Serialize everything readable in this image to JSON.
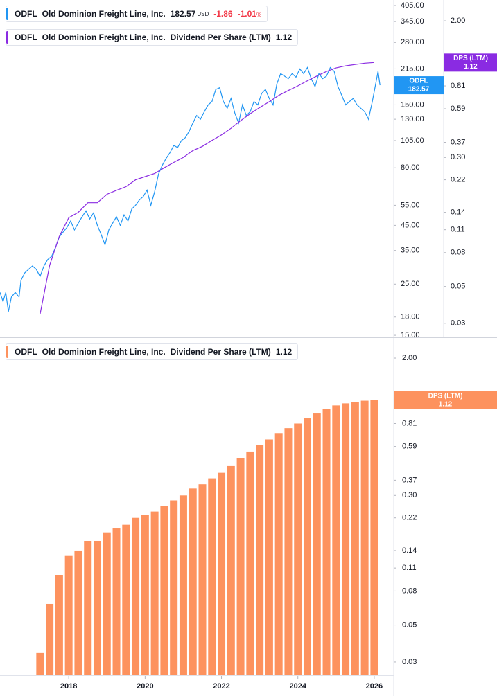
{
  "chart_data": [
    {
      "type": "line",
      "ticker": "ODFL",
      "currency": "USD",
      "change": -1.86,
      "change_percent": -1.01,
      "percent_sign": "%",
      "log_scale": true,
      "xlim": [
        2016.2,
        2026.51
      ],
      "ylim": [
        14.7,
        428
      ],
      "yticks": [
        {
          "value": 405,
          "label": "405.00"
        },
        {
          "value": 345,
          "label": "345.00"
        },
        {
          "value": 280,
          "label": "280.00"
        },
        {
          "value": 215,
          "label": "215.00"
        },
        {
          "value": 150,
          "label": "150.00"
        },
        {
          "value": 130,
          "label": "130.00"
        },
        {
          "value": 105,
          "label": "105.00"
        },
        {
          "value": 80,
          "label": "80.00"
        },
        {
          "value": 55,
          "label": "55.00"
        },
        {
          "value": 45,
          "label": "45.00"
        },
        {
          "value": 35,
          "label": "35.00"
        },
        {
          "value": 25,
          "label": "25.00"
        },
        {
          "value": 18,
          "label": "18.00"
        },
        {
          "value": 15,
          "label": "15.00"
        }
      ],
      "y2lim": [
        0.0247,
        2.67
      ],
      "y2ticks": [
        {
          "value": 2,
          "label": "2.00"
        },
        0.81,
        0.59,
        0.37,
        {
          "value": 0.3,
          "label": "0.30"
        },
        0.22,
        0.14,
        0.11,
        0.08,
        0.05,
        0.03
      ],
      "series": [
        {
          "name": "Old Dominion Freight Line, Inc.",
          "color": "#2196f3",
          "x": [
            2016.2,
            2016.28,
            2016.35,
            2016.42,
            2016.5,
            2016.6,
            2016.7,
            2016.75,
            2016.85,
            2016.95,
            2017.05,
            2017.15,
            2017.25,
            2017.35,
            2017.45,
            2017.55,
            2017.65,
            2017.75,
            2017.85,
            2017.95,
            2018.05,
            2018.15,
            2018.25,
            2018.35,
            2018.45,
            2018.55,
            2018.65,
            2018.75,
            2018.85,
            2018.95,
            2019.05,
            2019.15,
            2019.25,
            2019.35,
            2019.45,
            2019.55,
            2019.65,
            2019.75,
            2019.85,
            2019.95,
            2020.05,
            2020.15,
            2020.25,
            2020.35,
            2020.45,
            2020.55,
            2020.65,
            2020.75,
            2020.85,
            2020.95,
            2021.05,
            2021.15,
            2021.25,
            2021.35,
            2021.45,
            2021.55,
            2021.65,
            2021.75,
            2021.85,
            2021.95,
            2022.05,
            2022.15,
            2022.25,
            2022.35,
            2022.45,
            2022.55,
            2022.65,
            2022.75,
            2022.85,
            2022.95,
            2023.05,
            2023.15,
            2023.25,
            2023.35,
            2023.45,
            2023.55,
            2023.65,
            2023.75,
            2023.85,
            2023.95,
            2024.05,
            2024.15,
            2024.25,
            2024.35,
            2024.45,
            2024.55,
            2024.65,
            2024.75,
            2024.85,
            2024.95,
            2025.05,
            2025.15,
            2025.25,
            2025.35,
            2025.45,
            2025.55,
            2025.65,
            2025.75,
            2025.85,
            2025.95,
            2026.05,
            2026.1,
            2026.15
          ],
          "values": [
            23,
            21,
            23,
            19,
            22,
            23,
            22,
            26,
            28,
            29,
            30,
            29,
            27,
            30,
            32,
            33,
            36,
            40,
            42,
            44,
            47,
            43,
            46,
            49,
            52,
            48,
            51,
            45,
            41,
            37,
            43,
            46,
            49,
            45,
            50,
            47,
            53,
            55,
            58,
            60,
            64,
            55,
            63,
            75,
            82,
            88,
            93,
            100,
            98,
            105,
            108,
            115,
            125,
            135,
            130,
            140,
            150,
            155,
            175,
            178,
            155,
            145,
            160,
            138,
            125,
            150,
            135,
            140,
            155,
            150,
            168,
            175,
            160,
            150,
            185,
            205,
            200,
            195,
            205,
            198,
            215,
            205,
            218,
            195,
            180,
            205,
            195,
            200,
            218,
            210,
            180,
            165,
            150,
            155,
            160,
            150,
            145,
            140,
            130,
            155,
            190,
            210,
            182.57
          ]
        },
        {
          "name": "Dividend Per Share (LTM)",
          "color": "#8a2be2",
          "axis": "y2",
          "badge_label": "DPS (LTM)",
          "x": [
            2017.25,
            2017.5,
            2017.75,
            2018,
            2018.25,
            2018.5,
            2018.75,
            2019,
            2019.25,
            2019.5,
            2019.75,
            2020,
            2020.25,
            2020.5,
            2020.75,
            2021,
            2021.25,
            2021.5,
            2021.75,
            2022,
            2022.25,
            2022.5,
            2022.75,
            2023,
            2023.25,
            2023.5,
            2023.75,
            2024,
            2024.25,
            2024.5,
            2024.75,
            2025,
            2025.25,
            2025.5,
            2025.75,
            2026
          ],
          "values": [
            0.034,
            0.067,
            0.1,
            0.13,
            0.14,
            0.16,
            0.16,
            0.18,
            0.19,
            0.2,
            0.22,
            0.23,
            0.24,
            0.26,
            0.28,
            0.3,
            0.33,
            0.35,
            0.38,
            0.41,
            0.45,
            0.5,
            0.55,
            0.6,
            0.65,
            0.71,
            0.76,
            0.81,
            0.87,
            0.93,
            0.99,
            1.04,
            1.07,
            1.09,
            1.11,
            1.12
          ]
        }
      ]
    },
    {
      "type": "bar",
      "ticker": "ODFL",
      "company": "Old Dominion Freight Line, Inc.",
      "name": "Dividend Per Share (LTM)",
      "badge_label": "DPS (LTM)",
      "color": "#fd925e",
      "log_scale": true,
      "xlim": [
        2016.2,
        2026.51
      ],
      "xticks": [
        2018,
        2020,
        2022,
        2024,
        2026
      ],
      "ylim": [
        0.025,
        2.59
      ],
      "yticks": [
        {
          "value": 2,
          "label": "2.00"
        },
        0.81,
        0.59,
        0.37,
        {
          "value": 0.3,
          "label": "0.30"
        },
        0.22,
        0.14,
        0.11,
        0.08,
        0.05,
        0.03
      ],
      "x": [
        2017.25,
        2017.5,
        2017.75,
        2018,
        2018.25,
        2018.5,
        2018.75,
        2019,
        2019.25,
        2019.5,
        2019.75,
        2020,
        2020.25,
        2020.5,
        2020.75,
        2021,
        2021.25,
        2021.5,
        2021.75,
        2022,
        2022.25,
        2022.5,
        2022.75,
        2023,
        2023.25,
        2023.5,
        2023.75,
        2024,
        2024.25,
        2024.5,
        2024.75,
        2025,
        2025.25,
        2025.5,
        2025.75,
        2026
      ],
      "values": [
        0.034,
        0.067,
        0.1,
        0.13,
        0.14,
        0.16,
        0.16,
        0.18,
        0.19,
        0.2,
        0.22,
        0.23,
        0.24,
        0.26,
        0.28,
        0.3,
        0.33,
        0.35,
        0.38,
        0.41,
        0.45,
        0.5,
        0.55,
        0.6,
        0.65,
        0.71,
        0.76,
        0.81,
        0.87,
        0.93,
        0.99,
        1.04,
        1.07,
        1.09,
        1.11,
        1.12
      ]
    }
  ]
}
